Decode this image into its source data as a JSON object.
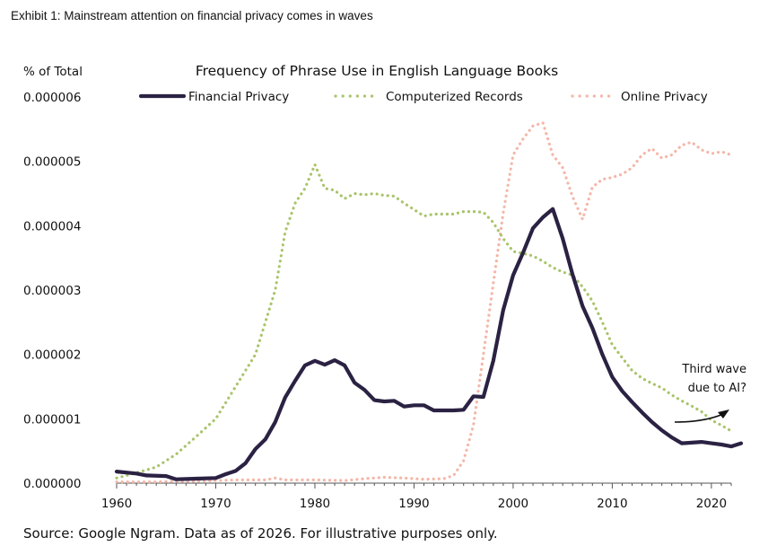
{
  "exhibit": "Exhibit 1: Mainstream attention on financial privacy comes in waves",
  "source": "Source: Google Ngram. Data as of 2026. For illustrative purposes only.",
  "annotation": [
    "Third wave",
    "due to AI?"
  ],
  "chart_data": {
    "type": "line",
    "title": "Frequency of Phrase Use in English Language Books",
    "ylabel": "% of Total",
    "xlabel": "",
    "xlim": [
      1960,
      2022
    ],
    "ylim": [
      0,
      6e-06
    ],
    "xticks": [
      "1960",
      "1970",
      "1980",
      "1990",
      "2000",
      "2010",
      "2020"
    ],
    "yticks": [
      "0.000000",
      "0.000001",
      "0.000002",
      "0.000003",
      "0.000004",
      "0.000005",
      "0.000006"
    ],
    "grid": false,
    "legend": "top",
    "series": [
      {
        "name": "Financial Privacy",
        "color": "#2b2243",
        "style": "solid",
        "points": [
          [
            1960,
            1.8e-07
          ],
          [
            1962,
            1.5e-07
          ],
          [
            1963,
            1.2e-07
          ],
          [
            1965,
            1.1e-07
          ],
          [
            1966,
            6e-08
          ],
          [
            1968,
            7e-08
          ],
          [
            1970,
            8e-08
          ],
          [
            1971,
            1.4e-07
          ],
          [
            1972,
            1.9e-07
          ],
          [
            1973,
            3.1e-07
          ],
          [
            1974,
            5.3e-07
          ],
          [
            1975,
            6.8e-07
          ],
          [
            1976,
            9.5e-07
          ],
          [
            1977,
            1.33e-06
          ],
          [
            1978,
            1.59e-06
          ],
          [
            1979,
            1.83e-06
          ],
          [
            1980,
            1.9e-06
          ],
          [
            1981,
            1.84e-06
          ],
          [
            1982,
            1.91e-06
          ],
          [
            1983,
            1.83e-06
          ],
          [
            1984,
            1.56e-06
          ],
          [
            1985,
            1.45e-06
          ],
          [
            1986,
            1.29e-06
          ],
          [
            1987,
            1.27e-06
          ],
          [
            1988,
            1.28e-06
          ],
          [
            1989,
            1.19e-06
          ],
          [
            1990,
            1.21e-06
          ],
          [
            1991,
            1.21e-06
          ],
          [
            1992,
            1.13e-06
          ],
          [
            1993,
            1.13e-06
          ],
          [
            1994,
            1.13e-06
          ],
          [
            1995,
            1.14e-06
          ],
          [
            1996,
            1.35e-06
          ],
          [
            1997,
            1.34e-06
          ],
          [
            1998,
            1.9e-06
          ],
          [
            1999,
            2.69e-06
          ],
          [
            2000,
            3.23e-06
          ],
          [
            2001,
            3.58e-06
          ],
          [
            2002,
            3.96e-06
          ],
          [
            2003,
            4.13e-06
          ],
          [
            2004,
            4.26e-06
          ],
          [
            2005,
            3.8e-06
          ],
          [
            2006,
            3.24e-06
          ],
          [
            2007,
            2.75e-06
          ],
          [
            2008,
            2.41e-06
          ],
          [
            2009,
            2e-06
          ],
          [
            2010,
            1.65e-06
          ],
          [
            2011,
            1.43e-06
          ],
          [
            2012,
            1.26e-06
          ],
          [
            2013,
            1.1e-06
          ],
          [
            2014,
            9.5e-07
          ],
          [
            2015,
            8.2e-07
          ],
          [
            2016,
            7.1e-07
          ],
          [
            2017,
            6.2e-07
          ],
          [
            2018,
            6.3e-07
          ],
          [
            2019,
            6.4e-07
          ],
          [
            2020,
            6.2e-07
          ],
          [
            2021,
            6e-07
          ],
          [
            2022,
            5.7e-07
          ],
          [
            2023,
            6.2e-07
          ]
        ]
      },
      {
        "name": "Computerized Records",
        "color": "#a9c46b",
        "style": "dotted",
        "points": [
          [
            1960,
            8e-08
          ],
          [
            1962,
            1.6e-07
          ],
          [
            1964,
            2.5e-07
          ],
          [
            1966,
            4.5e-07
          ],
          [
            1968,
            7.2e-07
          ],
          [
            1970,
            1e-06
          ],
          [
            1972,
            1.5e-06
          ],
          [
            1974,
            2e-06
          ],
          [
            1976,
            3e-06
          ],
          [
            1977,
            3.9e-06
          ],
          [
            1978,
            4.35e-06
          ],
          [
            1979,
            4.58e-06
          ],
          [
            1980,
            4.95e-06
          ],
          [
            1981,
            4.58e-06
          ],
          [
            1982,
            4.55e-06
          ],
          [
            1983,
            4.42e-06
          ],
          [
            1984,
            4.5e-06
          ],
          [
            1985,
            4.48e-06
          ],
          [
            1986,
            4.5e-06
          ],
          [
            1987,
            4.47e-06
          ],
          [
            1988,
            4.46e-06
          ],
          [
            1989,
            4.35e-06
          ],
          [
            1990,
            4.25e-06
          ],
          [
            1991,
            4.15e-06
          ],
          [
            1992,
            4.18e-06
          ],
          [
            1993,
            4.18e-06
          ],
          [
            1994,
            4.18e-06
          ],
          [
            1995,
            4.22e-06
          ],
          [
            1996,
            4.22e-06
          ],
          [
            1997,
            4.21e-06
          ],
          [
            1998,
            4.05e-06
          ],
          [
            1999,
            3.8e-06
          ],
          [
            2000,
            3.6e-06
          ],
          [
            2001,
            3.57e-06
          ],
          [
            2002,
            3.53e-06
          ],
          [
            2003,
            3.45e-06
          ],
          [
            2004,
            3.35e-06
          ],
          [
            2005,
            3.28e-06
          ],
          [
            2006,
            3.23e-06
          ],
          [
            2007,
            3.05e-06
          ],
          [
            2008,
            2.83e-06
          ],
          [
            2009,
            2.5e-06
          ],
          [
            2010,
            2.15e-06
          ],
          [
            2011,
            1.95e-06
          ],
          [
            2012,
            1.75e-06
          ],
          [
            2013,
            1.63e-06
          ],
          [
            2014,
            1.55e-06
          ],
          [
            2015,
            1.48e-06
          ],
          [
            2016,
            1.37e-06
          ],
          [
            2017,
            1.28e-06
          ],
          [
            2018,
            1.2e-06
          ],
          [
            2019,
            1.11e-06
          ],
          [
            2020,
            9.8e-07
          ],
          [
            2021,
            9e-07
          ],
          [
            2022,
            8.1e-07
          ]
        ]
      },
      {
        "name": "Online Privacy",
        "color": "#f4b6a8",
        "style": "dotted",
        "points": [
          [
            1960,
            2e-08
          ],
          [
            1962,
            2e-08
          ],
          [
            1964,
            2e-08
          ],
          [
            1966,
            3e-08
          ],
          [
            1968,
            3e-08
          ],
          [
            1970,
            4e-08
          ],
          [
            1972,
            5e-08
          ],
          [
            1975,
            5e-08
          ],
          [
            1976,
            8e-08
          ],
          [
            1977,
            5e-08
          ],
          [
            1980,
            5e-08
          ],
          [
            1983,
            4e-08
          ],
          [
            1985,
            7e-08
          ],
          [
            1987,
            9e-08
          ],
          [
            1989,
            8e-08
          ],
          [
            1991,
            6e-08
          ],
          [
            1993,
            7e-08
          ],
          [
            1994,
            1.2e-07
          ],
          [
            1995,
            3.5e-07
          ],
          [
            1996,
            9e-07
          ],
          [
            1997,
            2e-06
          ],
          [
            1998,
            3.1e-06
          ],
          [
            1999,
            4.2e-06
          ],
          [
            2000,
            5.1e-06
          ],
          [
            2001,
            5.35e-06
          ],
          [
            2002,
            5.55e-06
          ],
          [
            2003,
            5.6e-06
          ],
          [
            2004,
            5.1e-06
          ],
          [
            2005,
            4.9e-06
          ],
          [
            2006,
            4.45e-06
          ],
          [
            2007,
            4.1e-06
          ],
          [
            2008,
            4.6e-06
          ],
          [
            2009,
            4.72e-06
          ],
          [
            2010,
            4.75e-06
          ],
          [
            2011,
            4.8e-06
          ],
          [
            2012,
            4.9e-06
          ],
          [
            2013,
            5.1e-06
          ],
          [
            2014,
            5.2e-06
          ],
          [
            2015,
            5.05e-06
          ],
          [
            2016,
            5.1e-06
          ],
          [
            2017,
            5.25e-06
          ],
          [
            2018,
            5.3e-06
          ],
          [
            2019,
            5.18e-06
          ],
          [
            2020,
            5.12e-06
          ],
          [
            2021,
            5.15e-06
          ],
          [
            2022,
            5.1e-06
          ]
        ]
      }
    ]
  }
}
